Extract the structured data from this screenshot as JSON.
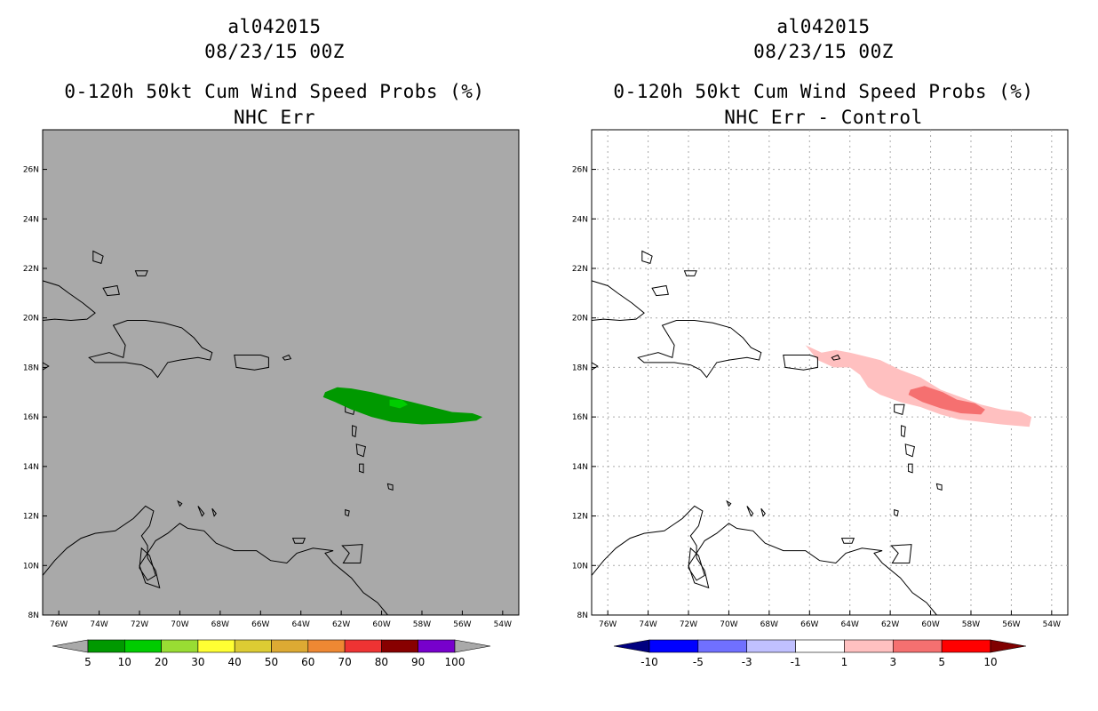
{
  "panels": [
    {
      "storm_id": "al042015",
      "datetime": "08/23/15 00Z",
      "product": "0-120h 50kt Cum Wind Speed Probs (%)",
      "subtitle": "NHC Err",
      "map_background": "#a9a9a9",
      "fill_colors": {
        "p5": "#009900",
        "p10": "#00cc00"
      },
      "colorbar": {
        "colors": [
          "#009900",
          "#00cc00",
          "#99dd33",
          "#ffff33",
          "#ddcc33",
          "#ddaa33",
          "#ee8833",
          "#ee3333",
          "#880000",
          "#7700cc"
        ],
        "end_color": "#a9a9a9",
        "labels": [
          "5",
          "10",
          "20",
          "30",
          "40",
          "50",
          "60",
          "70",
          "80",
          "90",
          "100"
        ]
      }
    },
    {
      "storm_id": "al042015",
      "datetime": "08/23/15 00Z",
      "product": "0-120h 50kt Cum Wind Speed Probs (%)",
      "subtitle": "NHC Err - Control",
      "map_background": "#ffffff",
      "fill_colors": {
        "d1": "#ffc0c0",
        "d3": "#f57070"
      },
      "colorbar": {
        "colors": [
          "#0000ff",
          "#7070ff",
          "#c0c0ff",
          "#ffffff",
          "#ffc0c0",
          "#f57070",
          "#ff0000"
        ],
        "low_end_color": "#000080",
        "high_end_color": "#800000",
        "labels": [
          "-10",
          "-5",
          "-3",
          "-1",
          "1",
          "3",
          "5",
          "10"
        ]
      }
    }
  ],
  "axes": {
    "lat_labels": [
      "8N",
      "10N",
      "12N",
      "14N",
      "16N",
      "18N",
      "20N",
      "22N",
      "24N",
      "26N"
    ],
    "lon_labels": [
      "76W",
      "74W",
      "72W",
      "70W",
      "68W",
      "66W",
      "64W",
      "62W",
      "60W",
      "58W",
      "56W",
      "54W"
    ]
  }
}
